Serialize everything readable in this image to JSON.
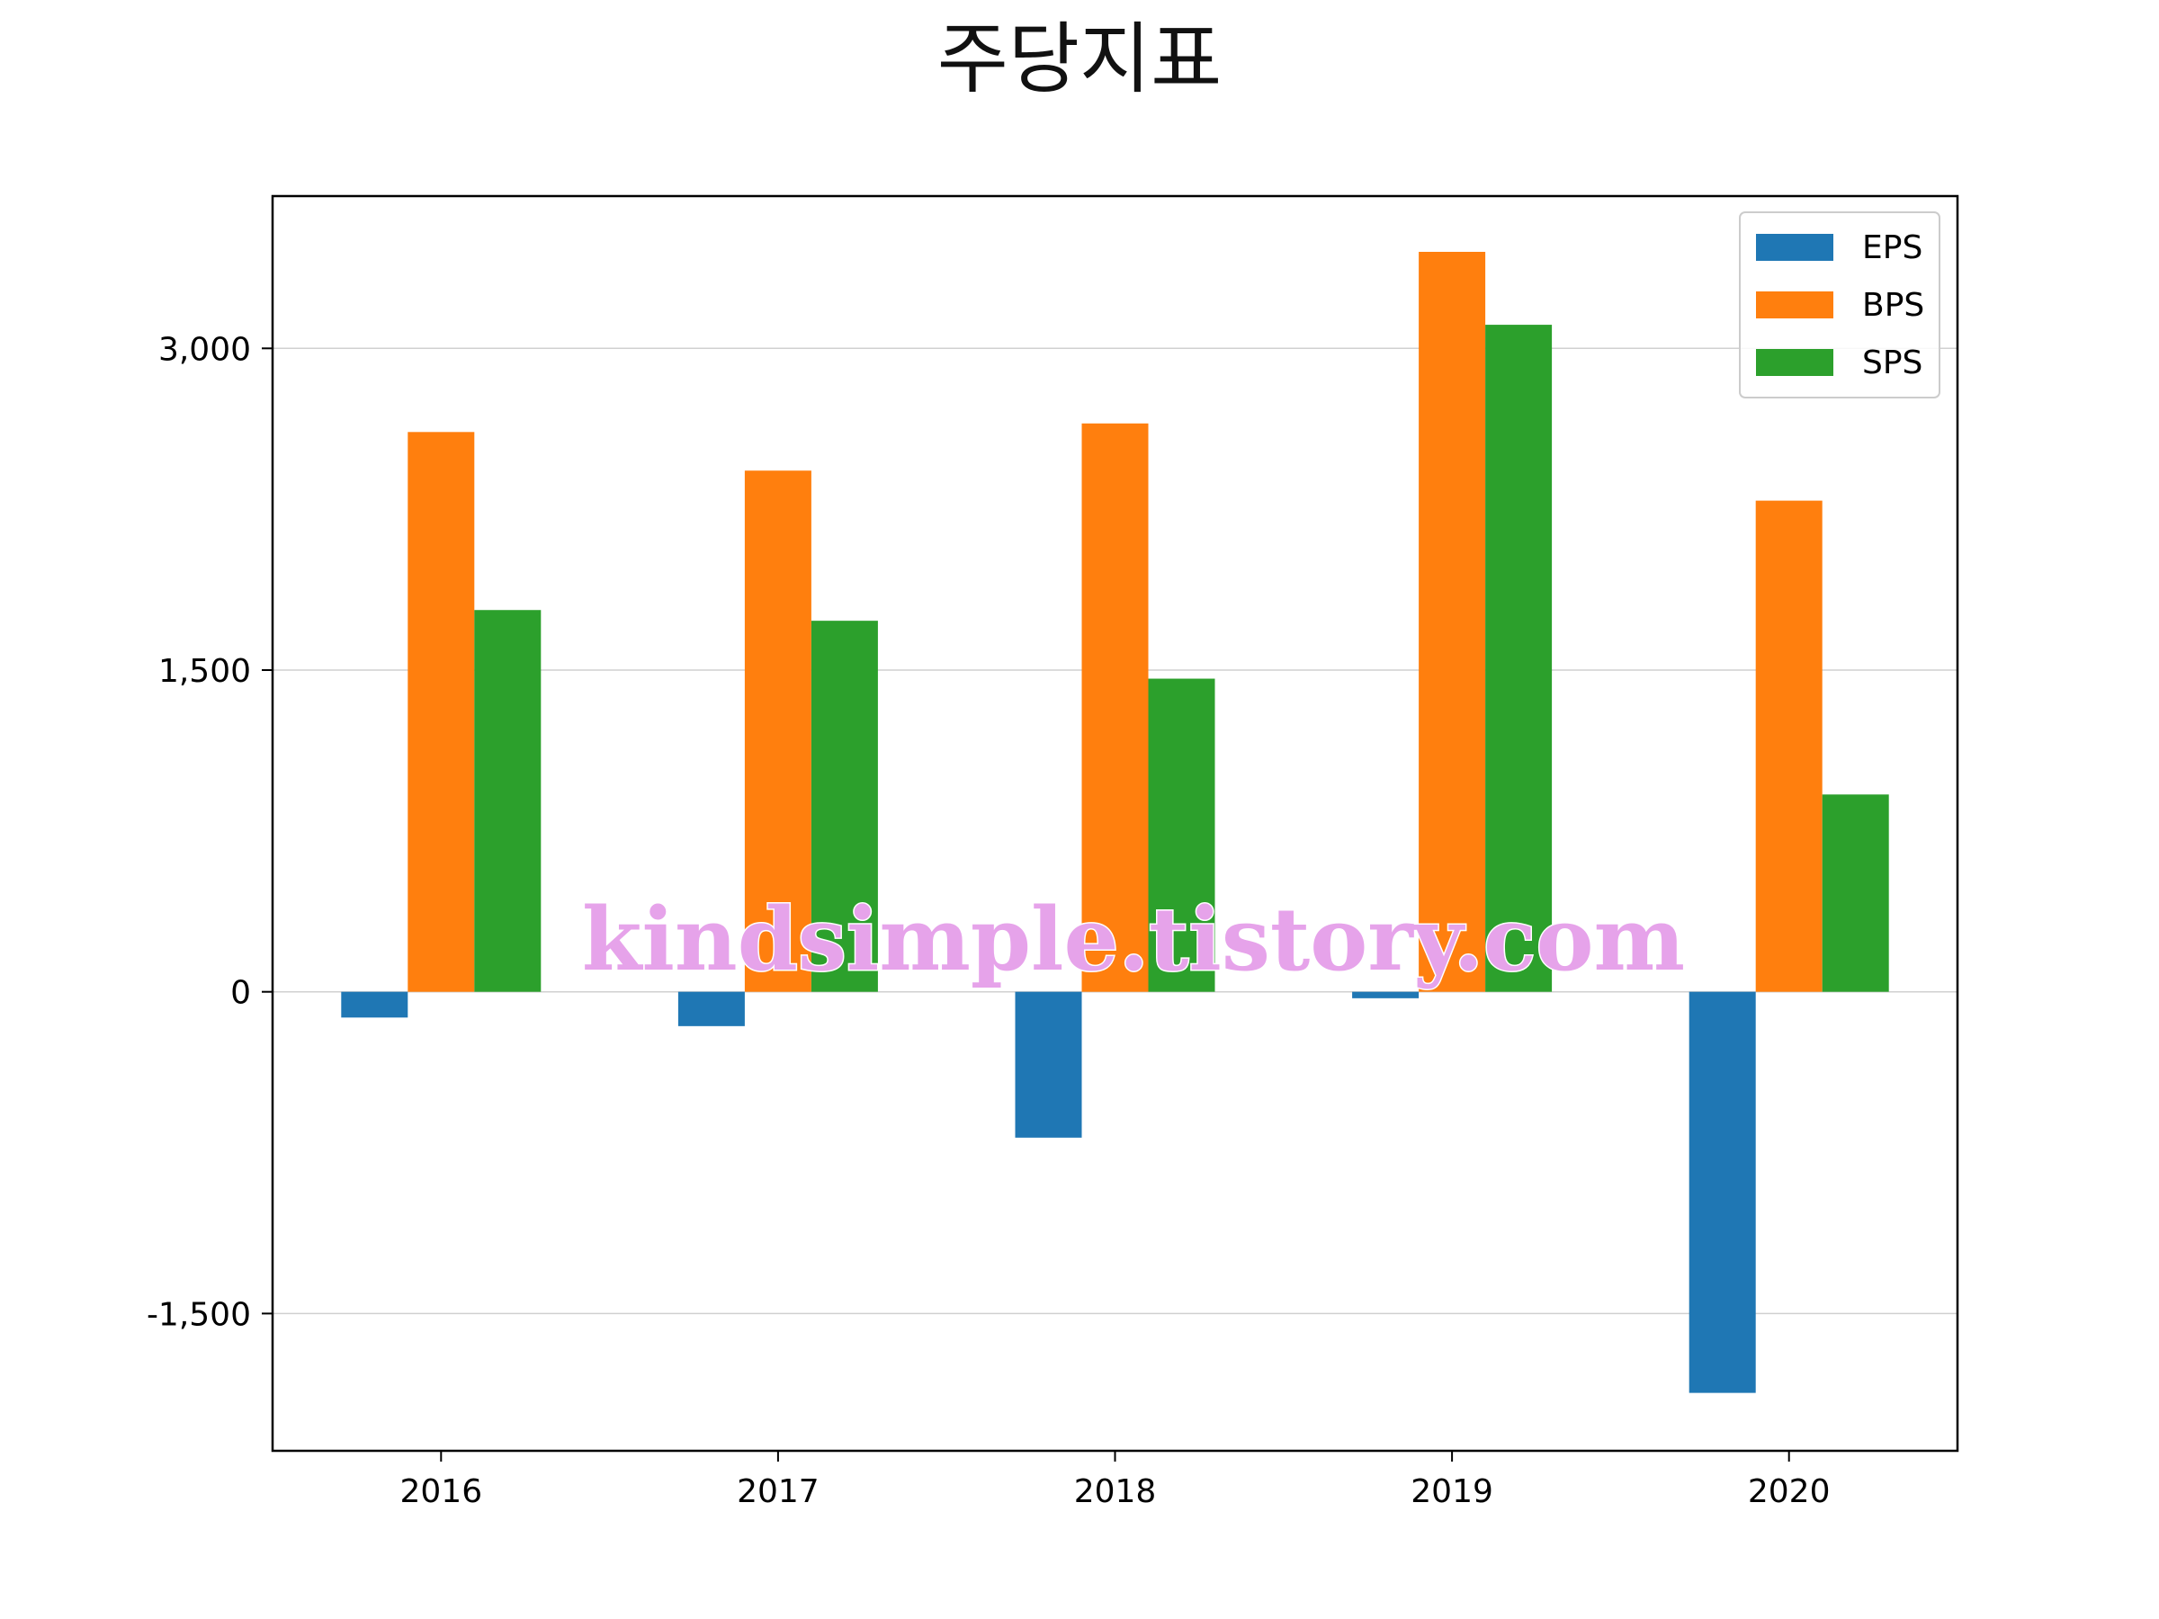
{
  "chart_data": {
    "type": "bar",
    "title": "주당지표",
    "categories": [
      "2016",
      "2017",
      "2018",
      "2019",
      "2020"
    ],
    "series": [
      {
        "name": "EPS",
        "color": "#1f77b4",
        "values": [
          -120,
          -160,
          -680,
          -30,
          -1870
        ]
      },
      {
        "name": "BPS",
        "color": "#ff7f0e",
        "values": [
          2610,
          2430,
          2650,
          3450,
          2290
        ]
      },
      {
        "name": "SPS",
        "color": "#2ca02c",
        "values": [
          1780,
          1730,
          1460,
          3110,
          920
        ]
      }
    ],
    "yticks": [
      -1500,
      0,
      1500,
      3000
    ],
    "ytick_labels": [
      "-1,500",
      "0",
      "1,500",
      "3,000"
    ],
    "ylim": [
      -2140,
      3710
    ],
    "grid": "horizontal",
    "legend_position": "top-right",
    "watermark": "kindsimple.tistory.com",
    "watermark_color": "#e6a3ea"
  }
}
